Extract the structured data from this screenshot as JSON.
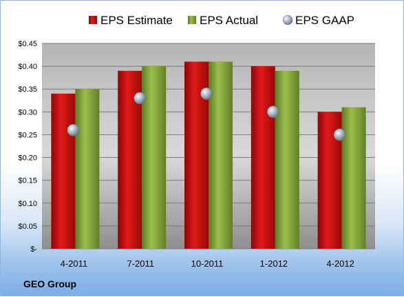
{
  "footer_label": "GEO Group",
  "chart_data": {
    "type": "bar",
    "categories": [
      "4-2011",
      "7-2011",
      "10-2011",
      "1-2012",
      "4-2012"
    ],
    "series": [
      {
        "name": "EPS Estimate",
        "type": "bar",
        "color": "#cc1111",
        "values": [
          0.34,
          0.39,
          0.41,
          0.4,
          0.3
        ]
      },
      {
        "name": "EPS Actual",
        "type": "bar",
        "color": "#8aab3c",
        "values": [
          0.35,
          0.4,
          0.41,
          0.39,
          0.31
        ]
      },
      {
        "name": "EPS GAAP",
        "type": "scatter",
        "color": "#9aa8b8",
        "values": [
          0.26,
          0.33,
          0.34,
          0.3,
          0.25
        ]
      }
    ],
    "yticks": [
      {
        "value": 0.45,
        "label": "$0.45"
      },
      {
        "value": 0.4,
        "label": "$0.40"
      },
      {
        "value": 0.35,
        "label": "$0.35"
      },
      {
        "value": 0.3,
        "label": "$0.30"
      },
      {
        "value": 0.25,
        "label": "$0.25"
      },
      {
        "value": 0.2,
        "label": "$0.20"
      },
      {
        "value": 0.15,
        "label": "$0.15"
      },
      {
        "value": 0.1,
        "label": "$0.10"
      },
      {
        "value": 0.05,
        "label": "$0.05"
      },
      {
        "value": 0.0,
        "label": "$-"
      }
    ],
    "ylim": [
      0,
      0.45
    ],
    "title": "",
    "xlabel": "",
    "ylabel": "",
    "grid": true,
    "legend_position": "top"
  }
}
